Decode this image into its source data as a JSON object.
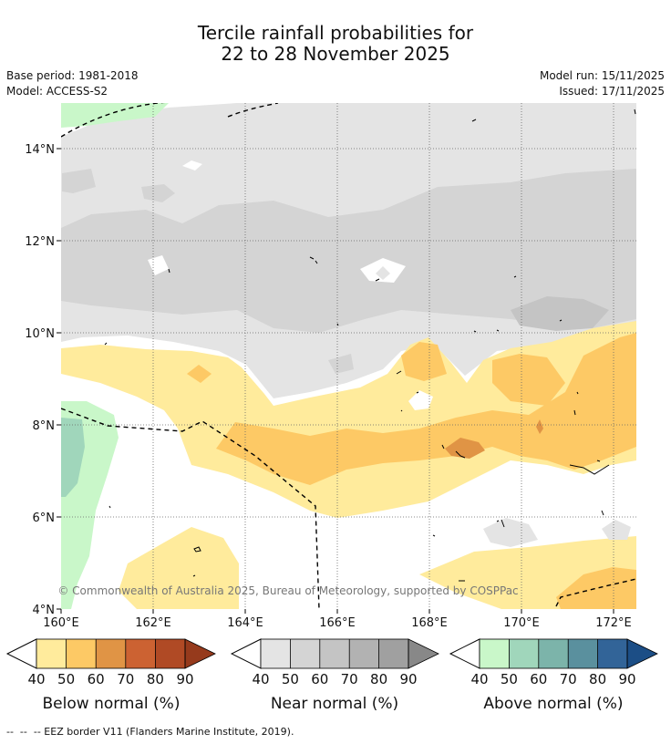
{
  "header": {
    "title_line1": "Tercile rainfall probabilities for",
    "title_line2": "22 to 28 November 2025",
    "base_period": "Base period: 1981-2018",
    "model": "Model: ACCESS-S2",
    "model_run": "Model run: 15/11/2025",
    "issued": "Issued: 17/11/2025"
  },
  "map": {
    "lat_labels": [
      "14°N",
      "12°N",
      "10°N",
      "8°N",
      "6°N",
      "4°N"
    ],
    "lon_labels": [
      "160°E",
      "162°E",
      "164°E",
      "166°E",
      "168°E",
      "170°E",
      "172°E"
    ],
    "copyright": "© Commonwealth of Australia 2025, Bureau of Meteorology, supported by COSPPac"
  },
  "legends": [
    {
      "title": "Below normal (%)",
      "ticks": [
        "40",
        "50",
        "60",
        "70",
        "80",
        "90"
      ],
      "colors": [
        "#ffeb9c",
        "#fdc965",
        "#e09445",
        "#cc6232",
        "#b04a25",
        "#963a1c"
      ]
    },
    {
      "title": "Near normal (%)",
      "ticks": [
        "40",
        "50",
        "60",
        "70",
        "80",
        "90"
      ],
      "colors": [
        "#e4e4e4",
        "#d4d4d4",
        "#c4c4c4",
        "#b2b2b2",
        "#a0a0a0",
        "#888888"
      ]
    },
    {
      "title": "Above normal (%)",
      "ticks": [
        "40",
        "50",
        "60",
        "70",
        "80",
        "90"
      ],
      "colors": [
        "#c9f7c9",
        "#a0d6bb",
        "#7cb4aa",
        "#5a909e",
        "#326498",
        "#1c4e86"
      ]
    }
  ],
  "footnote": "--  --  -- EEZ border V11 (Flanders Marine Institute, 2019)."
}
